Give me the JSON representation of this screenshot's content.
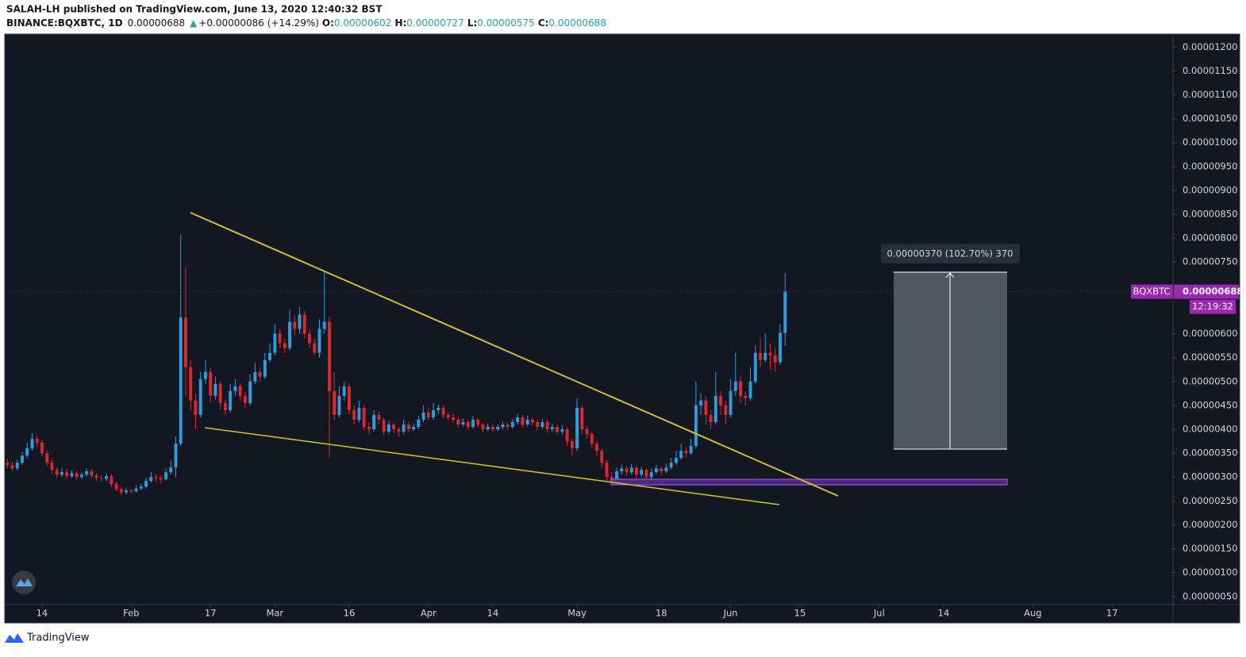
{
  "header": {
    "published": "SALAH-LH published on TradingView.com, June 13, 2020 12:40:32 BST",
    "symbol": "BINANCE:BQXBTC, 1D",
    "last": "0.00000688",
    "arrow": "▲",
    "change": "+0.00000086 (+14.29%)",
    "o_label": "O:",
    "o": "0.00000602",
    "h_label": "H:",
    "h": "0.00000727",
    "l_label": "L:",
    "l": "0.00000575",
    "c_label": "C:",
    "c": "0.00000688"
  },
  "footer": {
    "brand": "TradingView"
  },
  "chart_data": {
    "type": "candlestick",
    "up_color": "#2a9fe0",
    "down_color": "#e3242b",
    "grid": false,
    "ylim": [
      3.3e-07,
      1.227e-05
    ],
    "xlim": [
      -0.2,
      235.3
    ],
    "yticks": [
      {
        "value": 5e-07,
        "label": "0.00000050"
      },
      {
        "value": 1e-06,
        "label": "0.00000100"
      },
      {
        "value": 1.5e-06,
        "label": "0.00000150"
      },
      {
        "value": 2e-06,
        "label": "0.00000200"
      },
      {
        "value": 2.5e-06,
        "label": "0.00000250"
      },
      {
        "value": 3e-06,
        "label": "0.00000300"
      },
      {
        "value": 3.5e-06,
        "label": "0.00000350"
      },
      {
        "value": 4e-06,
        "label": "0.00000400"
      },
      {
        "value": 4.5e-06,
        "label": "0.00000450"
      },
      {
        "value": 5e-06,
        "label": "0.00000500"
      },
      {
        "value": 5.5e-06,
        "label": "0.00000550"
      },
      {
        "value": 6e-06,
        "label": "0.00000600"
      },
      {
        "value": 7.5e-06,
        "label": "0.00000750"
      },
      {
        "value": 8e-06,
        "label": "0.00000800"
      },
      {
        "value": 8.5e-06,
        "label": "0.00000850"
      },
      {
        "value": 9e-06,
        "label": "0.00000900"
      },
      {
        "value": 9.5e-06,
        "label": "0.00000950"
      },
      {
        "value": 1e-05,
        "label": "0.00001000"
      },
      {
        "value": 1.05e-05,
        "label": "0.00001050"
      },
      {
        "value": 1.1e-05,
        "label": "0.00001100"
      },
      {
        "value": 1.15e-05,
        "label": "0.00001150"
      },
      {
        "value": 1.2e-05,
        "label": "0.00001200"
      }
    ],
    "xticks": [
      {
        "value": 7,
        "label": "14"
      },
      {
        "value": 25,
        "label": "Feb"
      },
      {
        "value": 41,
        "label": "17"
      },
      {
        "value": 54,
        "label": "Mar"
      },
      {
        "value": 69,
        "label": "16"
      },
      {
        "value": 85,
        "label": "Apr"
      },
      {
        "value": 98,
        "label": "14"
      },
      {
        "value": 115,
        "label": "May"
      },
      {
        "value": 132,
        "label": "18"
      },
      {
        "value": 146,
        "label": "Jun"
      },
      {
        "value": 160,
        "label": "15"
      },
      {
        "value": 176,
        "label": "Jul"
      },
      {
        "value": 189,
        "label": "14"
      },
      {
        "value": 207,
        "label": "Aug"
      },
      {
        "value": 223,
        "label": "17"
      }
    ],
    "last_price": {
      "value": 6.88e-06,
      "label": "0.00000688"
    },
    "symbol_tag": "BQXBTC",
    "countdown": "12:19:32",
    "measure_label": "0.00000370 (102.70%) 370",
    "candles": [
      [
        3.3e-06,
        3.38e-06,
        3.18e-06,
        3.25e-06
      ],
      [
        3.25e-06,
        3.32e-06,
        3.12e-06,
        3.18e-06
      ],
      [
        3.18e-06,
        3.36e-06,
        3.14e-06,
        3.3e-06
      ],
      [
        3.3e-06,
        3.52e-06,
        3.26e-06,
        3.45e-06
      ],
      [
        3.45e-06,
        3.72e-06,
        3.4e-06,
        3.6e-06
      ],
      [
        3.6e-06,
        3.92e-06,
        3.55e-06,
        3.8e-06
      ],
      [
        3.8e-06,
        3.88e-06,
        3.62e-06,
        3.72e-06
      ],
      [
        3.72e-06,
        3.78e-06,
        3.44e-06,
        3.5e-06
      ],
      [
        3.5e-06,
        3.56e-06,
        3.22e-06,
        3.3e-06
      ],
      [
        3.3e-06,
        3.36e-06,
        3.08e-06,
        3.15e-06
      ],
      [
        3.15e-06,
        3.2e-06,
        2.98e-06,
        3.05e-06
      ],
      [
        3.05e-06,
        3.18e-06,
        3e-06,
        3.1e-06
      ],
      [
        3.1e-06,
        3.16e-06,
        2.96e-06,
        3.02e-06
      ],
      [
        3.02e-06,
        3.14e-06,
        2.98e-06,
        3.08e-06
      ],
      [
        3.08e-06,
        3.12e-06,
        2.94e-06,
        3e-06
      ],
      [
        3e-06,
        3.1e-06,
        2.96e-06,
        3.05e-06
      ],
      [
        3.05e-06,
        3.18e-06,
        3e-06,
        3.12e-06
      ],
      [
        3.12e-06,
        3.16e-06,
        2.98e-06,
        3.03e-06
      ],
      [
        3.03e-06,
        3.08e-06,
        2.92e-06,
        2.98e-06
      ],
      [
        2.98e-06,
        3.04e-06,
        2.9e-06,
        2.96e-06
      ],
      [
        2.96e-06,
        3.08e-06,
        2.92e-06,
        3.02e-06
      ],
      [
        3.02e-06,
        3.06e-06,
        2.8e-06,
        2.85e-06
      ],
      [
        2.85e-06,
        2.9e-06,
        2.7e-06,
        2.75e-06
      ],
      [
        2.75e-06,
        2.8e-06,
        2.62e-06,
        2.68e-06
      ],
      [
        2.68e-06,
        2.78e-06,
        2.64e-06,
        2.72e-06
      ],
      [
        2.72e-06,
        2.76e-06,
        2.65e-06,
        2.7e-06
      ],
      [
        2.7e-06,
        2.82e-06,
        2.68e-06,
        2.76e-06
      ],
      [
        2.76e-06,
        2.86e-06,
        2.72e-06,
        2.8e-06
      ],
      [
        2.8e-06,
        2.98e-06,
        2.76e-06,
        2.92e-06
      ],
      [
        2.92e-06,
        3.1e-06,
        2.88e-06,
        3e-06
      ],
      [
        3e-06,
        3.06e-06,
        2.9e-06,
        2.98e-06
      ],
      [
        2.98e-06,
        3.04e-06,
        2.88e-06,
        2.95e-06
      ],
      [
        2.95e-06,
        3.18e-06,
        2.92e-06,
        3.1e-06
      ],
      [
        3.1e-06,
        3.35e-06,
        3.05e-06,
        3.2e-06
      ],
      [
        3.2e-06,
        3.85e-06,
        3e-06,
        3.7e-06
      ],
      [
        3.7e-06,
        8.08e-06,
        3.65e-06,
        6.34e-06
      ],
      [
        6.34e-06,
        7.4e-06,
        4.7e-06,
        5.3e-06
      ],
      [
        5.3e-06,
        5.45e-06,
        4.4e-06,
        4.6e-06
      ],
      [
        4.6e-06,
        4.75e-06,
        4e-06,
        4.3e-06
      ],
      [
        4.3e-06,
        5.2e-06,
        4.25e-06,
        5.05e-06
      ],
      [
        5.05e-06,
        5.45e-06,
        4.95e-06,
        5.2e-06
      ],
      [
        5.2e-06,
        5.3e-06,
        4.55e-06,
        4.7e-06
      ],
      [
        4.7e-06,
        5.1e-06,
        4.62e-06,
        4.95e-06
      ],
      [
        4.95e-06,
        5e-06,
        4.4e-06,
        4.55e-06
      ],
      [
        4.55e-06,
        4.62e-06,
        4.3e-06,
        4.4e-06
      ],
      [
        4.4e-06,
        4.95e-06,
        4.35e-06,
        4.8e-06
      ],
      [
        4.8e-06,
        5.05e-06,
        4.7e-06,
        4.9e-06
      ],
      [
        4.9e-06,
        4.96e-06,
        4.6e-06,
        4.7e-06
      ],
      [
        4.7e-06,
        4.78e-06,
        4.45e-06,
        4.55e-06
      ],
      [
        4.55e-06,
        5.15e-06,
        4.5e-06,
        5e-06
      ],
      [
        5e-06,
        5.4e-06,
        4.95e-06,
        5.2e-06
      ],
      [
        5.2e-06,
        5.3e-06,
        5e-06,
        5.1e-06
      ],
      [
        5.1e-06,
        5.6e-06,
        5.05e-06,
        5.45e-06
      ],
      [
        5.45e-06,
        5.8e-06,
        5.4e-06,
        5.6e-06
      ],
      [
        5.6e-06,
        6.2e-06,
        5.55e-06,
        6e-06
      ],
      [
        6e-06,
        6.1e-06,
        5.7e-06,
        5.8e-06
      ],
      [
        5.8e-06,
        5.9e-06,
        5.6e-06,
        5.7e-06
      ],
      [
        5.7e-06,
        6.5e-06,
        5.65e-06,
        6.25e-06
      ],
      [
        6.25e-06,
        6.4e-06,
        5.95e-06,
        6.1e-06
      ],
      [
        6.1e-06,
        6.55e-06,
        6e-06,
        6.4e-06
      ],
      [
        6.4e-06,
        6.48e-06,
        5.9e-06,
        6e-06
      ],
      [
        6e-06,
        6.1e-06,
        5.7e-06,
        5.8e-06
      ],
      [
        5.8e-06,
        5.9e-06,
        5.55e-06,
        5.6e-06
      ],
      [
        5.6e-06,
        6.3e-06,
        5.5e-06,
        6.1e-06
      ],
      [
        6.1e-06,
        7.29e-06,
        6e-06,
        6.25e-06
      ],
      [
        6.25e-06,
        6.35e-06,
        3.4e-06,
        4.8e-06
      ],
      [
        4.8e-06,
        5.2e-06,
        4.2e-06,
        4.3e-06
      ],
      [
        4.3e-06,
        4.9e-06,
        4.25e-06,
        4.7e-06
      ],
      [
        4.7e-06,
        5e-06,
        4.6e-06,
        4.9e-06
      ],
      [
        4.9e-06,
        4.95e-06,
        4.3e-06,
        4.4e-06
      ],
      [
        4.4e-06,
        4.5e-06,
        4.1e-06,
        4.2e-06
      ],
      [
        4.2e-06,
        4.6e-06,
        4.15e-06,
        4.45e-06
      ],
      [
        4.45e-06,
        4.52e-06,
        3.98e-06,
        4.05e-06
      ],
      [
        4.05e-06,
        4.15e-06,
        3.9e-06,
        4e-06
      ],
      [
        4e-06,
        4.4e-06,
        3.95e-06,
        4.3e-06
      ],
      [
        4.3e-06,
        4.38e-06,
        4.1e-06,
        4.2e-06
      ],
      [
        4.2e-06,
        4.25e-06,
        3.88e-06,
        3.95e-06
      ],
      [
        3.95e-06,
        4.18e-06,
        3.9e-06,
        4.1e-06
      ],
      [
        4.1e-06,
        4.15e-06,
        3.92e-06,
        4e-06
      ],
      [
        4e-06,
        4.05e-06,
        3.85e-06,
        3.95e-06
      ],
      [
        3.95e-06,
        4.2e-06,
        3.9e-06,
        4.1e-06
      ],
      [
        4.1e-06,
        4.16e-06,
        3.94e-06,
        4e-06
      ],
      [
        4e-06,
        4.12e-06,
        3.96e-06,
        4.05e-06
      ],
      [
        4.05e-06,
        4.28e-06,
        4e-06,
        4.2e-06
      ],
      [
        4.2e-06,
        4.5e-06,
        4.15e-06,
        4.35e-06
      ],
      [
        4.35e-06,
        4.45e-06,
        4.18e-06,
        4.25e-06
      ],
      [
        4.25e-06,
        4.55e-06,
        4.2e-06,
        4.4e-06
      ],
      [
        4.4e-06,
        4.52e-06,
        4.32e-06,
        4.45e-06
      ],
      [
        4.45e-06,
        4.5e-06,
        4.24e-06,
        4.3e-06
      ],
      [
        4.3e-06,
        4.36e-06,
        4.18e-06,
        4.25e-06
      ],
      [
        4.25e-06,
        4.32e-06,
        4.14e-06,
        4.2e-06
      ],
      [
        4.2e-06,
        4.25e-06,
        4.04e-06,
        4.1e-06
      ],
      [
        4.1e-06,
        4.22e-06,
        4.06e-06,
        4.15e-06
      ],
      [
        4.15e-06,
        4.2e-06,
        3.98e-06,
        4.05e-06
      ],
      [
        4.05e-06,
        4.28e-06,
        4.02e-06,
        4.2e-06
      ],
      [
        4.2e-06,
        4.24e-06,
        4.04e-06,
        4.1e-06
      ],
      [
        4.1e-06,
        4.14e-06,
        3.94e-06,
        4e-06
      ],
      [
        4e-06,
        4.12e-06,
        3.96e-06,
        4.05e-06
      ],
      [
        4.05e-06,
        4.1e-06,
        3.94e-06,
        4e-06
      ],
      [
        4e-06,
        4.1e-06,
        3.96e-06,
        4.05e-06
      ],
      [
        4.05e-06,
        4.16e-06,
        4e-06,
        4.1e-06
      ],
      [
        4.1e-06,
        4.14e-06,
        3.98e-06,
        4.05e-06
      ],
      [
        4.05e-06,
        4.22e-06,
        4.02e-06,
        4.15e-06
      ],
      [
        4.15e-06,
        4.32e-06,
        4.1e-06,
        4.25e-06
      ],
      [
        4.25e-06,
        4.3e-06,
        4.04e-06,
        4.1e-06
      ],
      [
        4.1e-06,
        4.28e-06,
        4.06e-06,
        4.2e-06
      ],
      [
        4.2e-06,
        4.24e-06,
        4.08e-06,
        4.15e-06
      ],
      [
        4.15e-06,
        4.2e-06,
        3.98e-06,
        4.05e-06
      ],
      [
        4.05e-06,
        4.22e-06,
        4e-06,
        4.15e-06
      ],
      [
        4.15e-06,
        4.2e-06,
        3.92e-06,
        4e-06
      ],
      [
        4e-06,
        4.12e-06,
        3.95e-06,
        4.05e-06
      ],
      [
        4.05e-06,
        4.1e-06,
        3.88e-06,
        3.95e-06
      ],
      [
        3.95e-06,
        4.08e-06,
        3.9e-06,
        4e-06
      ],
      [
        4e-06,
        4.04e-06,
        3.65e-06,
        3.75e-06
      ],
      [
        3.75e-06,
        3.8e-06,
        3.45e-06,
        3.6e-06
      ],
      [
        3.6e-06,
        4.65e-06,
        3.55e-06,
        4.45e-06
      ],
      [
        4.45e-06,
        4.5e-06,
        3.9e-06,
        4e-06
      ],
      [
        4e-06,
        4.08e-06,
        3.8e-06,
        3.9e-06
      ],
      [
        3.9e-06,
        3.95e-06,
        3.6e-06,
        3.7e-06
      ],
      [
        3.7e-06,
        3.76e-06,
        3.45e-06,
        3.55e-06
      ],
      [
        3.55e-06,
        3.6e-06,
        3.2e-06,
        3.3e-06
      ],
      [
        3.3e-06,
        3.35e-06,
        2.9e-06,
        3e-06
      ],
      [
        3e-06,
        3.1e-06,
        2.88e-06,
        2.95e-06
      ],
      [
        2.95e-06,
        3.2e-06,
        2.9e-06,
        3.12e-06
      ],
      [
        3.12e-06,
        3.25e-06,
        3.05e-06,
        3.18e-06
      ],
      [
        3.18e-06,
        3.22e-06,
        3.02e-06,
        3.1e-06
      ],
      [
        3.1e-06,
        3.28e-06,
        3.06e-06,
        3.2e-06
      ],
      [
        3.2e-06,
        3.24e-06,
        2.98e-06,
        3.05e-06
      ],
      [
        3.05e-06,
        3.22e-06,
        3e-06,
        3.15e-06
      ],
      [
        3.15e-06,
        3.18e-06,
        2.92e-06,
        3e-06
      ],
      [
        3e-06,
        3.18e-06,
        2.96e-06,
        3.1e-06
      ],
      [
        3.1e-06,
        3.25e-06,
        3.06e-06,
        3.18e-06
      ],
      [
        3.18e-06,
        3.22e-06,
        3.05e-06,
        3.12e-06
      ],
      [
        3.12e-06,
        3.28e-06,
        3.08e-06,
        3.2e-06
      ],
      [
        3.2e-06,
        3.4e-06,
        3.16e-06,
        3.3e-06
      ],
      [
        3.3e-06,
        3.55e-06,
        3.25e-06,
        3.4e-06
      ],
      [
        3.4e-06,
        3.7e-06,
        3.36e-06,
        3.55e-06
      ],
      [
        3.55e-06,
        3.62e-06,
        3.42e-06,
        3.5e-06
      ],
      [
        3.5e-06,
        3.8e-06,
        3.46e-06,
        3.65e-06
      ],
      [
        3.65e-06,
        5e-06,
        3.6e-06,
        4.5e-06
      ],
      [
        4.5e-06,
        4.75e-06,
        4.3e-06,
        4.6e-06
      ],
      [
        4.6e-06,
        4.7e-06,
        4.1e-06,
        4.3e-06
      ],
      [
        4.3e-06,
        4.4e-06,
        4e-06,
        4.15e-06
      ],
      [
        4.15e-06,
        5.2e-06,
        4.1e-06,
        4.7e-06
      ],
      [
        4.7e-06,
        4.8e-06,
        4.3e-06,
        4.5e-06
      ],
      [
        4.5e-06,
        4.6e-06,
        4.1e-06,
        4.3e-06
      ],
      [
        4.3e-06,
        5.05e-06,
        4.25e-06,
        4.8e-06
      ],
      [
        4.8e-06,
        5.6e-06,
        4.7e-06,
        5e-06
      ],
      [
        5e-06,
        5.1e-06,
        4.55e-06,
        4.7e-06
      ],
      [
        4.7e-06,
        4.8e-06,
        4.5e-06,
        4.65e-06
      ],
      [
        4.65e-06,
        5.3e-06,
        4.6e-06,
        5e-06
      ],
      [
        5e-06,
        5.75e-06,
        4.95e-06,
        5.6e-06
      ],
      [
        5.6e-06,
        5.9e-06,
        5.3e-06,
        5.45e-06
      ],
      [
        5.45e-06,
        6e-06,
        5.4e-06,
        5.6e-06
      ],
      [
        5.6e-06,
        5.8e-06,
        5.25e-06,
        5.55e-06
      ],
      [
        5.55e-06,
        5.7e-06,
        5.2e-06,
        5.4e-06
      ],
      [
        5.4e-06,
        6.2e-06,
        5.35e-06,
        6.02e-06
      ],
      [
        6.02e-06,
        7.27e-06,
        5.75e-06,
        6.88e-06
      ]
    ]
  }
}
